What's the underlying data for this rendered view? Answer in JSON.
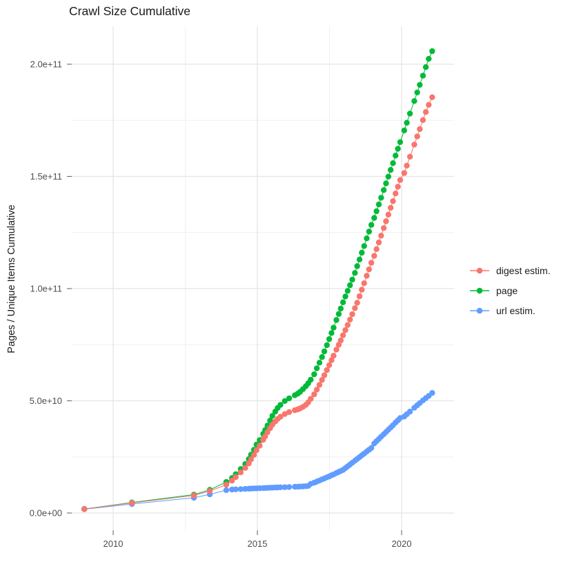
{
  "page": {
    "title": "Crawl Size Cumulative"
  },
  "legend": {
    "items": [
      {
        "label": "digest estim.",
        "color": "#F8766D"
      },
      {
        "label": "page",
        "color": "#00BA38"
      },
      {
        "label": "url estim.",
        "color": "#619CFF"
      }
    ]
  },
  "chart_data": {
    "type": "line",
    "title": "Crawl Size Cumulative",
    "xlabel": "",
    "ylabel": "Pages / Unique Items Cumulative",
    "values_unit": "billions (1e9) of pages / unique items",
    "x_unit": "year (decimal, one point per crawl)",
    "xlim": [
      2008.56,
      2021.81
    ],
    "ylim_billions": [
      -7.7,
      216.2
    ],
    "grid": "major+minor",
    "legend_position": "right",
    "x_ticks": [
      {
        "value": 2010,
        "label": "2010"
      },
      {
        "value": 2015,
        "label": "2015"
      },
      {
        "value": 2020,
        "label": "2020"
      }
    ],
    "y_ticks": [
      {
        "value": 0,
        "label": "0.0e+00"
      },
      {
        "value": 50,
        "label": "5.0e+10"
      },
      {
        "value": 100,
        "label": "1.0e+11"
      },
      {
        "value": 150,
        "label": "1.5e+11"
      },
      {
        "value": 200,
        "label": "2.0e+11"
      }
    ],
    "x_minor": [
      2012.5,
      2017.5
    ],
    "y_minor": [
      25,
      75,
      125,
      175
    ],
    "x": [
      2009.0,
      2010.65,
      2012.8,
      2013.35,
      2013.92,
      2014.12,
      2014.25,
      2014.42,
      2014.58,
      2014.7,
      2014.78,
      2014.88,
      2014.97,
      2015.08,
      2015.2,
      2015.27,
      2015.35,
      2015.44,
      2015.52,
      2015.62,
      2015.7,
      2015.8,
      2015.95,
      2016.1,
      2016.3,
      2016.4,
      2016.48,
      2016.58,
      2016.68,
      2016.76,
      2016.85,
      2016.97,
      2017.06,
      2017.15,
      2017.24,
      2017.32,
      2017.41,
      2017.49,
      2017.57,
      2017.64,
      2017.74,
      2017.82,
      2017.89,
      2017.97,
      2018.05,
      2018.13,
      2018.21,
      2018.29,
      2018.38,
      2018.46,
      2018.54,
      2018.62,
      2018.7,
      2018.79,
      2018.87,
      2018.95,
      2019.05,
      2019.13,
      2019.21,
      2019.29,
      2019.38,
      2019.46,
      2019.54,
      2019.62,
      2019.7,
      2019.79,
      2019.87,
      2019.95,
      2020.09,
      2020.18,
      2020.29,
      2020.44,
      2020.54,
      2020.63,
      2020.74,
      2020.84,
      2020.94,
      2021.06
    ],
    "series": [
      {
        "name": "digest estim.",
        "color": "#F8766D",
        "values": [
          1.75,
          4.5,
          7.8,
          9.8,
          12.6,
          14.4,
          16.0,
          18.1,
          20.1,
          22.1,
          23.9,
          25.9,
          28.0,
          30.0,
          32.6,
          34.2,
          36.0,
          37.8,
          39.4,
          40.8,
          41.9,
          42.9,
          44.1,
          45.0,
          45.8,
          46.2,
          46.6,
          47.3,
          48.2,
          49.3,
          50.9,
          52.9,
          55.0,
          57.1,
          59.3,
          61.4,
          63.7,
          65.9,
          68.1,
          70.1,
          72.8,
          75.0,
          76.9,
          79.2,
          81.5,
          83.8,
          86.2,
          88.6,
          91.3,
          93.7,
          96.6,
          99.5,
          102.4,
          105.7,
          108.6,
          111.5,
          114.6,
          117.6,
          120.6,
          123.6,
          127.0,
          130.0,
          133.0,
          136.0,
          139.0,
          142.4,
          145.4,
          148.4,
          151.5,
          154.8,
          158.8,
          164.2,
          167.8,
          171.1,
          175.1,
          178.7,
          181.9,
          185.3
        ]
      },
      {
        "name": "page",
        "color": "#00BA38",
        "values": [
          1.8,
          4.7,
          8.2,
          10.3,
          13.8,
          15.6,
          17.3,
          19.6,
          21.8,
          24.0,
          26.0,
          28.2,
          30.5,
          32.5,
          35.3,
          37.0,
          39.0,
          41.2,
          43.3,
          45.2,
          46.8,
          48.2,
          49.9,
          51.1,
          52.5,
          53.2,
          54.0,
          55.2,
          56.5,
          57.8,
          59.4,
          61.8,
          64.5,
          67.0,
          69.5,
          72.0,
          74.8,
          77.5,
          80.2,
          82.6,
          86.0,
          88.7,
          91.1,
          93.9,
          96.5,
          99.0,
          101.5,
          104.0,
          107.0,
          110.0,
          113.0,
          116.0,
          119.0,
          122.4,
          125.4,
          128.4,
          131.5,
          134.5,
          137.5,
          140.5,
          143.9,
          146.9,
          149.9,
          152.9,
          155.9,
          159.3,
          162.3,
          165.3,
          170.5,
          173.9,
          178.0,
          183.6,
          187.4,
          190.8,
          194.9,
          198.7,
          202.4,
          205.8
        ]
      },
      {
        "name": "url estim.",
        "color": "#619CFF",
        "values": [
          1.7,
          4.0,
          6.8,
          8.3,
          10.2,
          10.45,
          10.55,
          10.65,
          10.75,
          10.82,
          10.88,
          10.95,
          11.0,
          11.05,
          11.1,
          11.15,
          11.2,
          11.25,
          11.3,
          11.35,
          11.4,
          11.45,
          11.5,
          11.58,
          11.68,
          11.73,
          11.78,
          11.85,
          11.95,
          12.05,
          13.0,
          13.5,
          14.0,
          14.5,
          15.0,
          15.4,
          15.9,
          16.3,
          16.8,
          17.2,
          17.8,
          18.3,
          18.7,
          19.2,
          20.0,
          20.8,
          21.6,
          22.4,
          23.3,
          24.1,
          24.9,
          25.7,
          26.5,
          27.4,
          28.2,
          29.0,
          31.0,
          32.0,
          33.0,
          34.0,
          35.1,
          36.1,
          37.1,
          38.1,
          39.1,
          40.3,
          41.3,
          42.3,
          43.0,
          44.0,
          45.2,
          46.9,
          48.0,
          49.0,
          50.2,
          51.2,
          52.2,
          53.5
        ]
      }
    ],
    "draw_order": [
      2,
      1,
      0
    ]
  }
}
